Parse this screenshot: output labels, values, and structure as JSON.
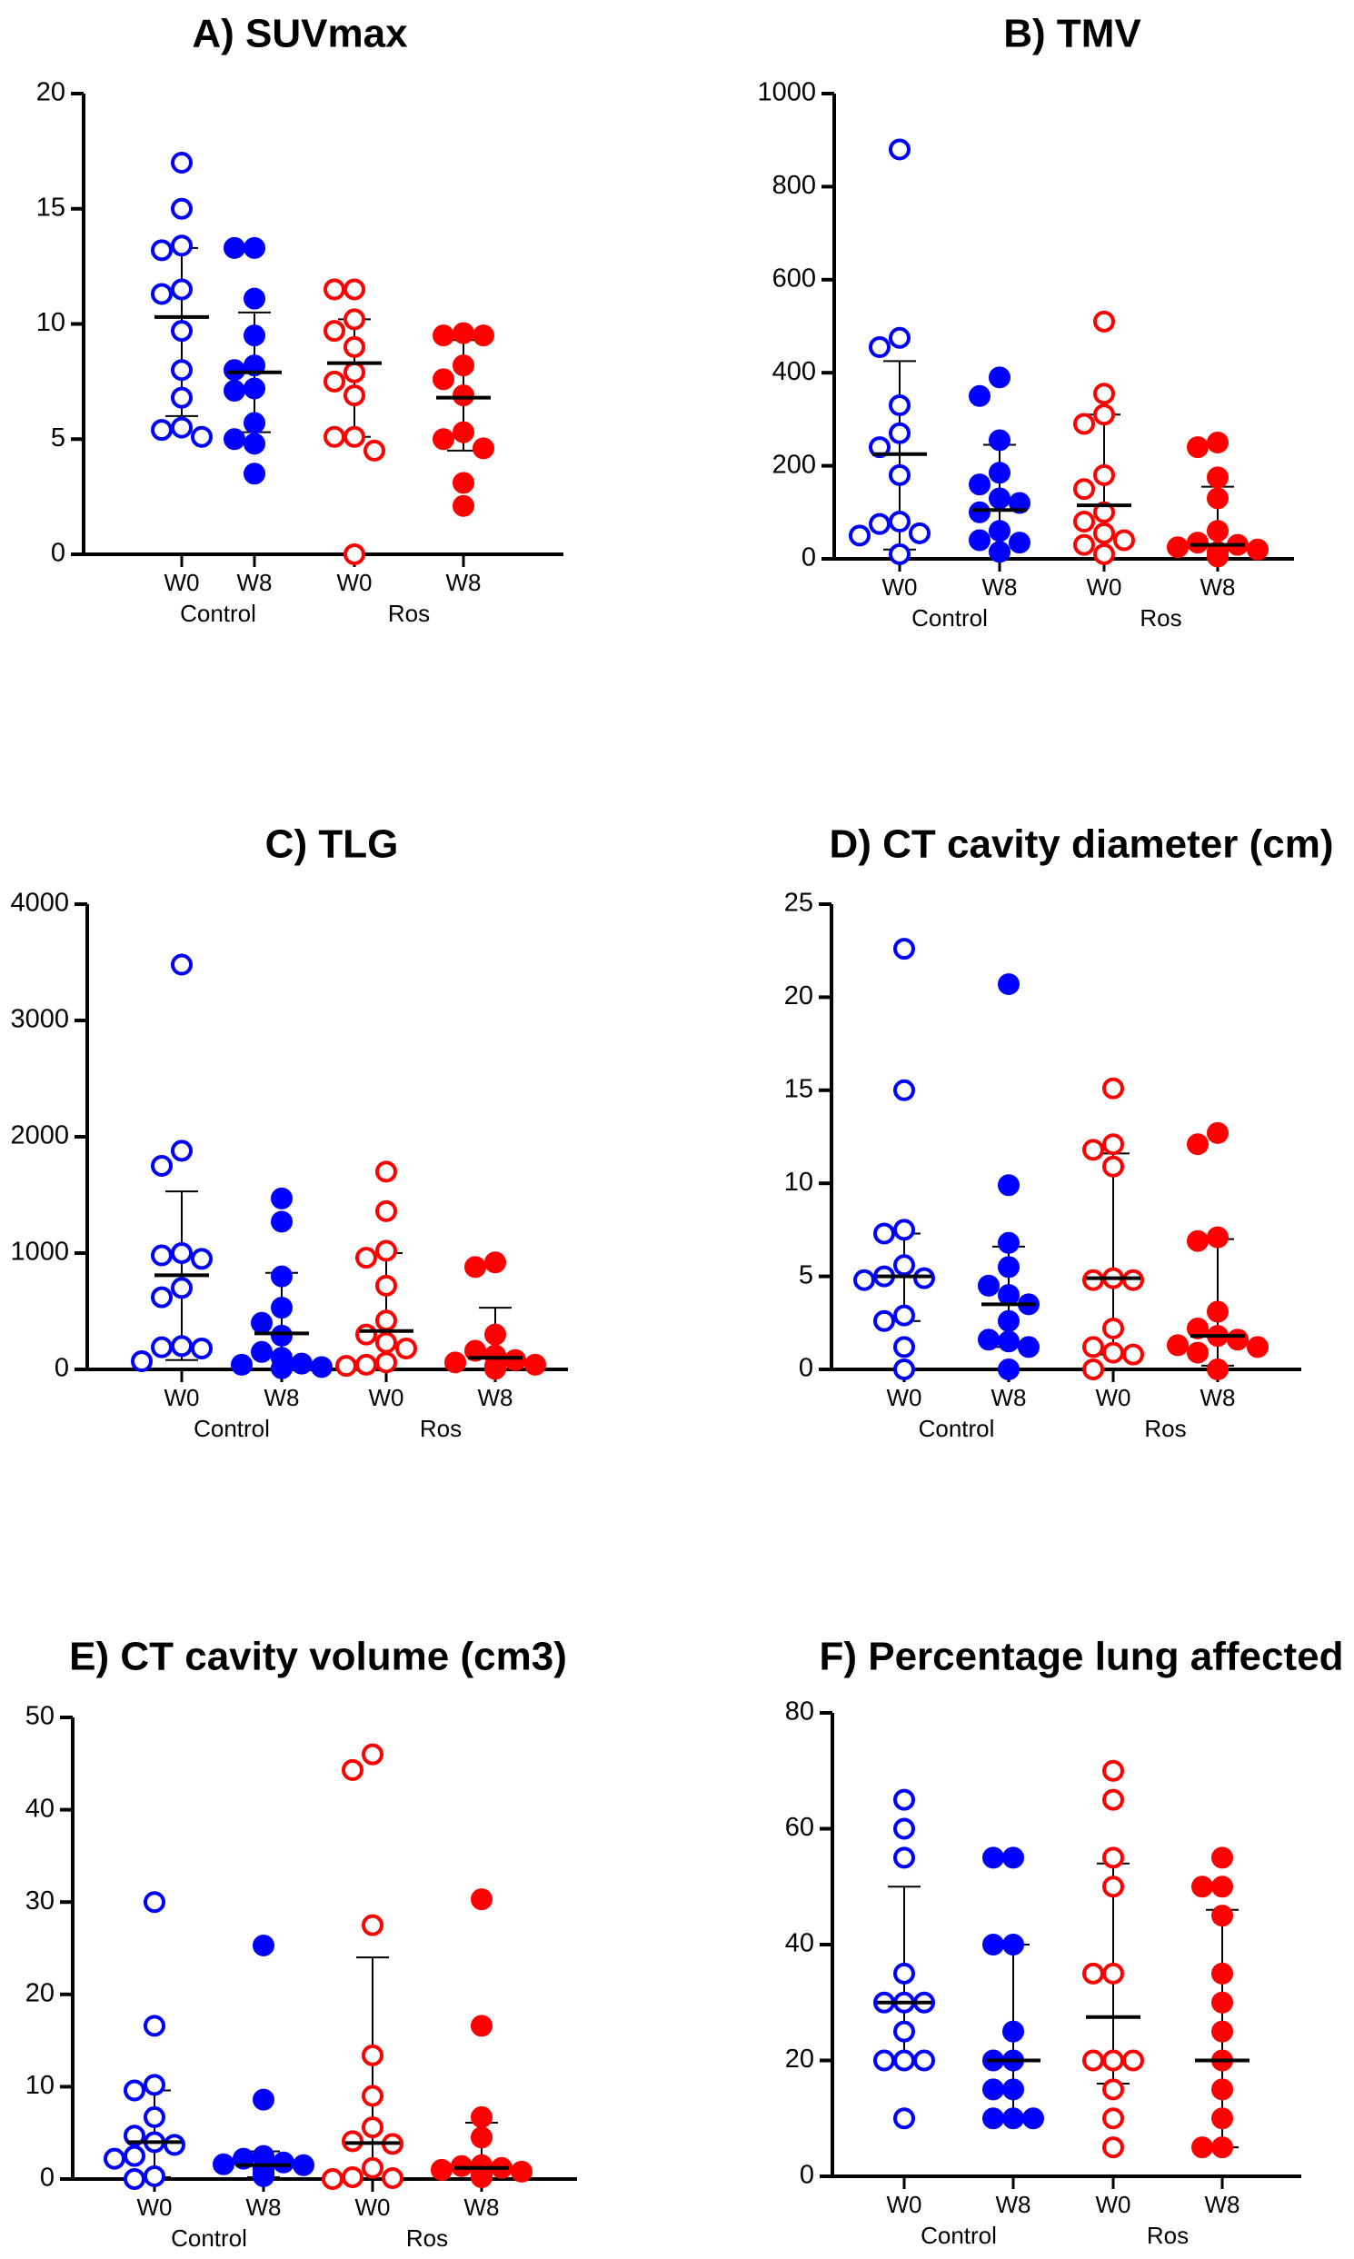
{
  "colors": {
    "control": "#0000ff",
    "ros": "#ff0000",
    "axis": "#000000"
  },
  "categories": [
    "W0",
    "W8",
    "W0",
    "W8"
  ],
  "groups": [
    "Control",
    "Ros"
  ],
  "chart_data": [
    {
      "type": "scatter",
      "title": "A) SUVmax",
      "ylim": [
        0,
        20
      ],
      "yticks": [
        0,
        5,
        10,
        15,
        20
      ],
      "categories": [
        "W0",
        "W8",
        "W0",
        "W8"
      ],
      "groups": [
        "Control",
        "Ros"
      ],
      "series": [
        {
          "group": "Control",
          "category": "W0",
          "filled": false,
          "points": [
            17,
            15,
            13.4,
            13.2,
            11.5,
            11.3,
            9.7,
            8,
            6.8,
            5.5,
            5.4,
            5.1
          ],
          "mean": 10.3,
          "sd_low": 6,
          "sd_high": 13.3
        },
        {
          "group": "Control",
          "category": "W8",
          "filled": true,
          "points": [
            13.3,
            13.3,
            11.1,
            9.5,
            8.2,
            8,
            7.2,
            7.1,
            5.7,
            5,
            4.8,
            3.5
          ],
          "mean": 7.9,
          "sd_low": 5.3,
          "sd_high": 10.5
        },
        {
          "group": "Ros",
          "category": "W0",
          "filled": false,
          "points": [
            11.5,
            11.5,
            10.2,
            9.7,
            9,
            7.9,
            7.5,
            6.9,
            5.1,
            5.1,
            4.5,
            0
          ],
          "mean": 8.3,
          "sd_low": 5.1,
          "sd_high": 10.2
        },
        {
          "group": "Ros",
          "category": "W8",
          "filled": true,
          "points": [
            9.6,
            9.5,
            9.5,
            8.2,
            7.6,
            6.9,
            5.3,
            5,
            4.6,
            3.1,
            2.1
          ],
          "mean": 6.8,
          "sd_low": 4.5,
          "sd_high": 9.3
        }
      ]
    },
    {
      "type": "scatter",
      "title": "B) TMV",
      "ylim": [
        0,
        1000
      ],
      "yticks": [
        0,
        200,
        400,
        600,
        800,
        1000
      ],
      "categories": [
        "W0",
        "W8",
        "W0",
        "W8"
      ],
      "groups": [
        "Control",
        "Ros"
      ],
      "series": [
        {
          "group": "Control",
          "category": "W0",
          "filled": false,
          "points": [
            880,
            475,
            455,
            330,
            270,
            240,
            180,
            80,
            75,
            55,
            50,
            10
          ],
          "mean": 225,
          "sd_low": 20,
          "sd_high": 425
        },
        {
          "group": "Control",
          "category": "W8",
          "filled": true,
          "points": [
            390,
            350,
            255,
            185,
            160,
            130,
            120,
            100,
            60,
            40,
            35,
            15
          ],
          "mean": 105,
          "sd_low": 0,
          "sd_high": 245
        },
        {
          "group": "Ros",
          "category": "W0",
          "filled": false,
          "points": [
            510,
            355,
            310,
            290,
            180,
            150,
            100,
            80,
            55,
            40,
            30,
            10
          ],
          "mean": 115,
          "sd_low": 0,
          "sd_high": 310
        },
        {
          "group": "Ros",
          "category": "W8",
          "filled": true,
          "points": [
            250,
            240,
            175,
            130,
            60,
            35,
            30,
            25,
            20,
            15,
            10,
            5
          ],
          "mean": 30,
          "sd_low": 0,
          "sd_high": 155
        }
      ]
    },
    {
      "type": "scatter",
      "title": "C) TLG",
      "ylim": [
        0,
        4000
      ],
      "yticks": [
        0,
        1000,
        2000,
        3000,
        4000
      ],
      "categories": [
        "W0",
        "W8",
        "W0",
        "W8"
      ],
      "groups": [
        "Control",
        "Ros"
      ],
      "series": [
        {
          "group": "Control",
          "category": "W0",
          "filled": false,
          "points": [
            3480,
            1880,
            1750,
            1000,
            980,
            950,
            700,
            620,
            200,
            190,
            180,
            70
          ],
          "mean": 810,
          "sd_low": 80,
          "sd_high": 1530
        },
        {
          "group": "Control",
          "category": "W8",
          "filled": true,
          "points": [
            1470,
            1270,
            800,
            530,
            400,
            290,
            150,
            100,
            50,
            40,
            20,
            10
          ],
          "mean": 310,
          "sd_low": 0,
          "sd_high": 830
        },
        {
          "group": "Ros",
          "category": "W0",
          "filled": false,
          "points": [
            1700,
            1360,
            1020,
            960,
            720,
            420,
            300,
            230,
            180,
            60,
            40,
            30
          ],
          "mean": 330,
          "sd_low": 0,
          "sd_high": 1000
        },
        {
          "group": "Ros",
          "category": "W8",
          "filled": true,
          "points": [
            920,
            880,
            300,
            160,
            120,
            80,
            60,
            40,
            30,
            20,
            10,
            5
          ],
          "mean": 100,
          "sd_low": 0,
          "sd_high": 530
        }
      ]
    },
    {
      "type": "scatter",
      "title": "D) CT cavity diameter (cm)",
      "ylim": [
        0,
        25
      ],
      "yticks": [
        0,
        5,
        10,
        15,
        20,
        25
      ],
      "categories": [
        "W0",
        "W8",
        "W0",
        "W8"
      ],
      "groups": [
        "Control",
        "Ros"
      ],
      "series": [
        {
          "group": "Control",
          "category": "W0",
          "filled": false,
          "points": [
            22.6,
            15,
            7.5,
            7.3,
            5.6,
            5,
            4.9,
            4.8,
            2.9,
            2.6,
            1.2,
            0
          ],
          "mean": 5,
          "sd_low": 2.6,
          "sd_high": 7.3
        },
        {
          "group": "Control",
          "category": "W8",
          "filled": true,
          "points": [
            20.7,
            9.9,
            6.8,
            5.5,
            4.5,
            4,
            3.5,
            2.6,
            1.6,
            1.5,
            1.2,
            0
          ],
          "mean": 3.5,
          "sd_low": 1.2,
          "sd_high": 6.6
        },
        {
          "group": "Ros",
          "category": "W0",
          "filled": false,
          "points": [
            15.1,
            12.1,
            11.8,
            10.9,
            4.9,
            4.8,
            4.8,
            2.2,
            1.2,
            0.9,
            0.8,
            0
          ],
          "mean": 4.9,
          "sd_low": 0.8,
          "sd_high": 11.6
        },
        {
          "group": "Ros",
          "category": "W8",
          "filled": true,
          "points": [
            12.7,
            12.1,
            7.1,
            6.9,
            3.1,
            2.2,
            1.8,
            1.6,
            1.3,
            1.2,
            0.9,
            0
          ],
          "mean": 1.8,
          "sd_low": 0.2,
          "sd_high": 7
        }
      ]
    },
    {
      "type": "scatter",
      "title": "E) CT cavity volume (cm3)",
      "ylim": [
        0,
        50
      ],
      "yticks": [
        0,
        10,
        20,
        30,
        40,
        50
      ],
      "categories": [
        "W0",
        "W8",
        "W0",
        "W8"
      ],
      "groups": [
        "Control",
        "Ros"
      ],
      "series": [
        {
          "group": "Control",
          "category": "W0",
          "filled": false,
          "points": [
            30,
            16.6,
            10.2,
            9.6,
            6.7,
            4.7,
            4,
            3.7,
            2.5,
            2.2,
            0.3,
            0
          ],
          "mean": 4,
          "sd_low": 0.2,
          "sd_high": 9.6
        },
        {
          "group": "Control",
          "category": "W8",
          "filled": true,
          "points": [
            25.3,
            8.6,
            2.5,
            2.2,
            1.8,
            1.6,
            1.5,
            1.2,
            1,
            0.6,
            0.5,
            0.3
          ],
          "mean": 1.5,
          "sd_low": 0.2,
          "sd_high": 3
        },
        {
          "group": "Ros",
          "category": "W0",
          "filled": false,
          "points": [
            46,
            44.3,
            27.5,
            13.4,
            9,
            5.6,
            4.1,
            3.8,
            1.2,
            0.2,
            0.1,
            0
          ],
          "mean": 3.9,
          "sd_low": 0,
          "sd_high": 24
        },
        {
          "group": "Ros",
          "category": "W8",
          "filled": true,
          "points": [
            30.3,
            16.6,
            6.7,
            4.5,
            1.5,
            1.4,
            1.2,
            1,
            0.8,
            0.5,
            0.3,
            0.2
          ],
          "mean": 1.2,
          "sd_low": 0,
          "sd_high": 6.1
        }
      ]
    },
    {
      "type": "scatter",
      "title": "F) Percentage lung affected",
      "ylim": [
        0,
        80
      ],
      "yticks": [
        0,
        20,
        40,
        60,
        80
      ],
      "categories": [
        "W0",
        "W8",
        "W0",
        "W8"
      ],
      "groups": [
        "Control",
        "Ros"
      ],
      "series": [
        {
          "group": "Control",
          "category": "W0",
          "filled": false,
          "points": [
            65,
            60,
            55,
            35,
            30,
            30,
            30,
            25,
            20,
            20,
            20,
            10
          ],
          "mean": 30,
          "sd_low": 20,
          "sd_high": 50
        },
        {
          "group": "Control",
          "category": "W8",
          "filled": true,
          "points": [
            55,
            55,
            40,
            40,
            25,
            20,
            20,
            15,
            15,
            10,
            10,
            10
          ],
          "mean": 20,
          "sd_low": 10,
          "sd_high": 40
        },
        {
          "group": "Ros",
          "category": "W0",
          "filled": false,
          "points": [
            70,
            65,
            55,
            50,
            35,
            35,
            20,
            20,
            20,
            15,
            10,
            5
          ],
          "mean": 27.5,
          "sd_low": 16,
          "sd_high": 54
        },
        {
          "group": "Ros",
          "category": "W8",
          "filled": true,
          "points": [
            55,
            50,
            50,
            45,
            35,
            30,
            25,
            20,
            15,
            10,
            5,
            5
          ],
          "mean": 20,
          "sd_low": 5,
          "sd_high": 46
        }
      ]
    }
  ]
}
